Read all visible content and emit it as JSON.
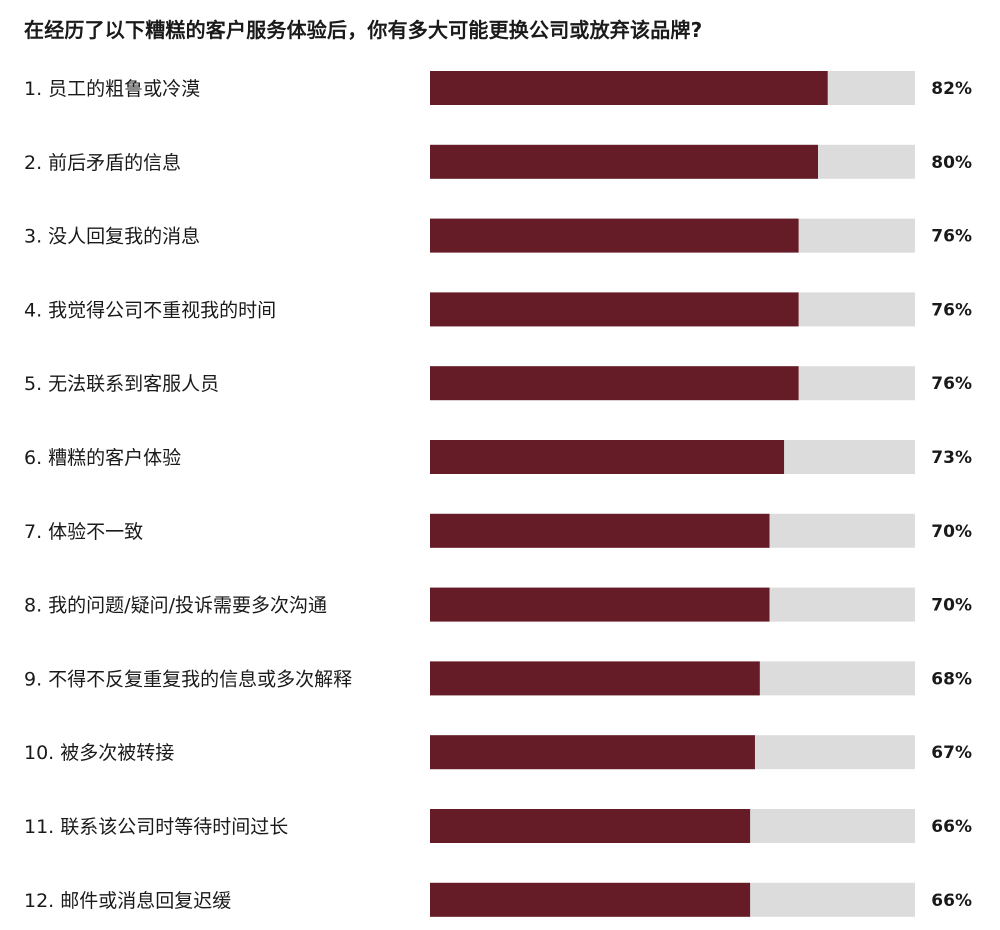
{
  "chart_data": {
    "type": "bar",
    "orientation": "horizontal",
    "title": "在经历了以下糟糕的客户服务体验后，你有多大可能更换公司或放弃该品牌?",
    "categories": [
      "1. 员工的粗鲁或冷漠",
      "2. 前后矛盾的信息",
      "3. 没人回复我的消息",
      "4. 我觉得公司不重视我的时间",
      "5. 无法联系到客服人员",
      "6. 糟糕的客户体验",
      "7. 体验不一致",
      "8. 我的问题/疑问/投诉需要多次沟通",
      "9. 不得不反复重复我的信息或多次解释",
      "10. 被多次被转接",
      "11. 联系该公司时等待时间过长",
      "12. 邮件或消息回复迟缓"
    ],
    "values": [
      82,
      80,
      76,
      76,
      76,
      73,
      70,
      70,
      68,
      67,
      66,
      66
    ],
    "value_labels": [
      "82%",
      "80%",
      "76%",
      "76%",
      "76%",
      "73%",
      "70%",
      "70%",
      "68%",
      "67%",
      "66%",
      "66%"
    ],
    "xlim": [
      0,
      100
    ],
    "grid": false,
    "legend": "none",
    "colors": {
      "bar": "#651c26",
      "track": "#dcdcdc"
    }
  }
}
